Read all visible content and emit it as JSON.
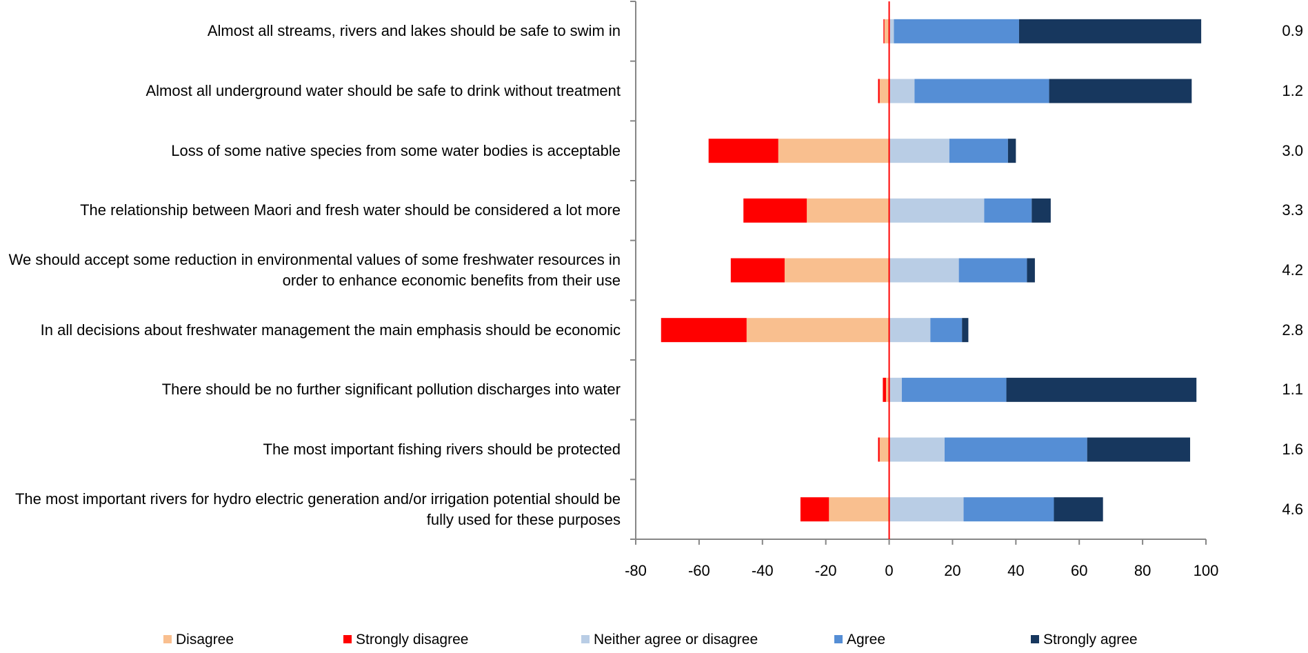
{
  "colors": {
    "disagree": "#F9BF8F",
    "strongly_disagree": "#FF0000",
    "neither": "#B9CDE5",
    "agree": "#558ED5",
    "strongly_agree": "#17375E",
    "zero_line": "#FF0000",
    "axis": "#868686"
  },
  "chart_data": {
    "type": "bar",
    "orientation": "horizontal-diverging-stacked",
    "xlim": [
      -80,
      100
    ],
    "xticks": [
      "-80",
      "-60",
      "-40",
      "-20",
      "0",
      "20",
      "40",
      "60",
      "80",
      "100"
    ],
    "categories": [
      "Almost all streams, rivers and lakes should be safe to swim in",
      "Almost all underground water should be safe to drink without treatment",
      "Loss of some native species from some water bodies is acceptable",
      "The relationship between Maori and fresh water should be considered a lot more",
      "We should accept some reduction in environmental values of some freshwater resources in order to enhance economic benefits from their use",
      "In all decisions about freshwater management the main emphasis should be economic",
      "There should be no further significant pollution discharges into water",
      "The most important fishing rivers should be protected",
      "The most important rivers for hydro electric generation and/or irrigation potential should be fully used for these purposes"
    ],
    "scores": [
      "0.9",
      "1.2",
      "3.0",
      "3.3",
      "4.2",
      "2.8",
      "1.1",
      "1.6",
      "4.6"
    ],
    "series": [
      {
        "name": "Disagree",
        "key": "disagree",
        "values": [
          -1.5,
          -3,
          -35,
          -26,
          -33,
          -45,
          -1,
          -3,
          -19
        ]
      },
      {
        "name": "Strongly disagree",
        "key": "strongly_disagree",
        "values": [
          -0.3,
          -0.5,
          -22,
          -20,
          -17,
          -27,
          -1,
          -0.5,
          -9
        ]
      },
      {
        "name": "Neither agree or disagree",
        "key": "neither",
        "values": [
          1.5,
          8,
          19,
          30,
          22,
          13,
          4,
          17.5,
          23.5
        ]
      },
      {
        "name": "Agree",
        "key": "agree",
        "values": [
          39.5,
          42.5,
          18.5,
          15,
          21.5,
          10,
          33,
          45,
          28.5
        ]
      },
      {
        "name": "Strongly agree",
        "key": "strongly_agree",
        "values": [
          57.5,
          45,
          2.5,
          6,
          2.5,
          2,
          60,
          32.5,
          15.5
        ]
      }
    ],
    "legend_position": "bottom",
    "grid": false
  }
}
